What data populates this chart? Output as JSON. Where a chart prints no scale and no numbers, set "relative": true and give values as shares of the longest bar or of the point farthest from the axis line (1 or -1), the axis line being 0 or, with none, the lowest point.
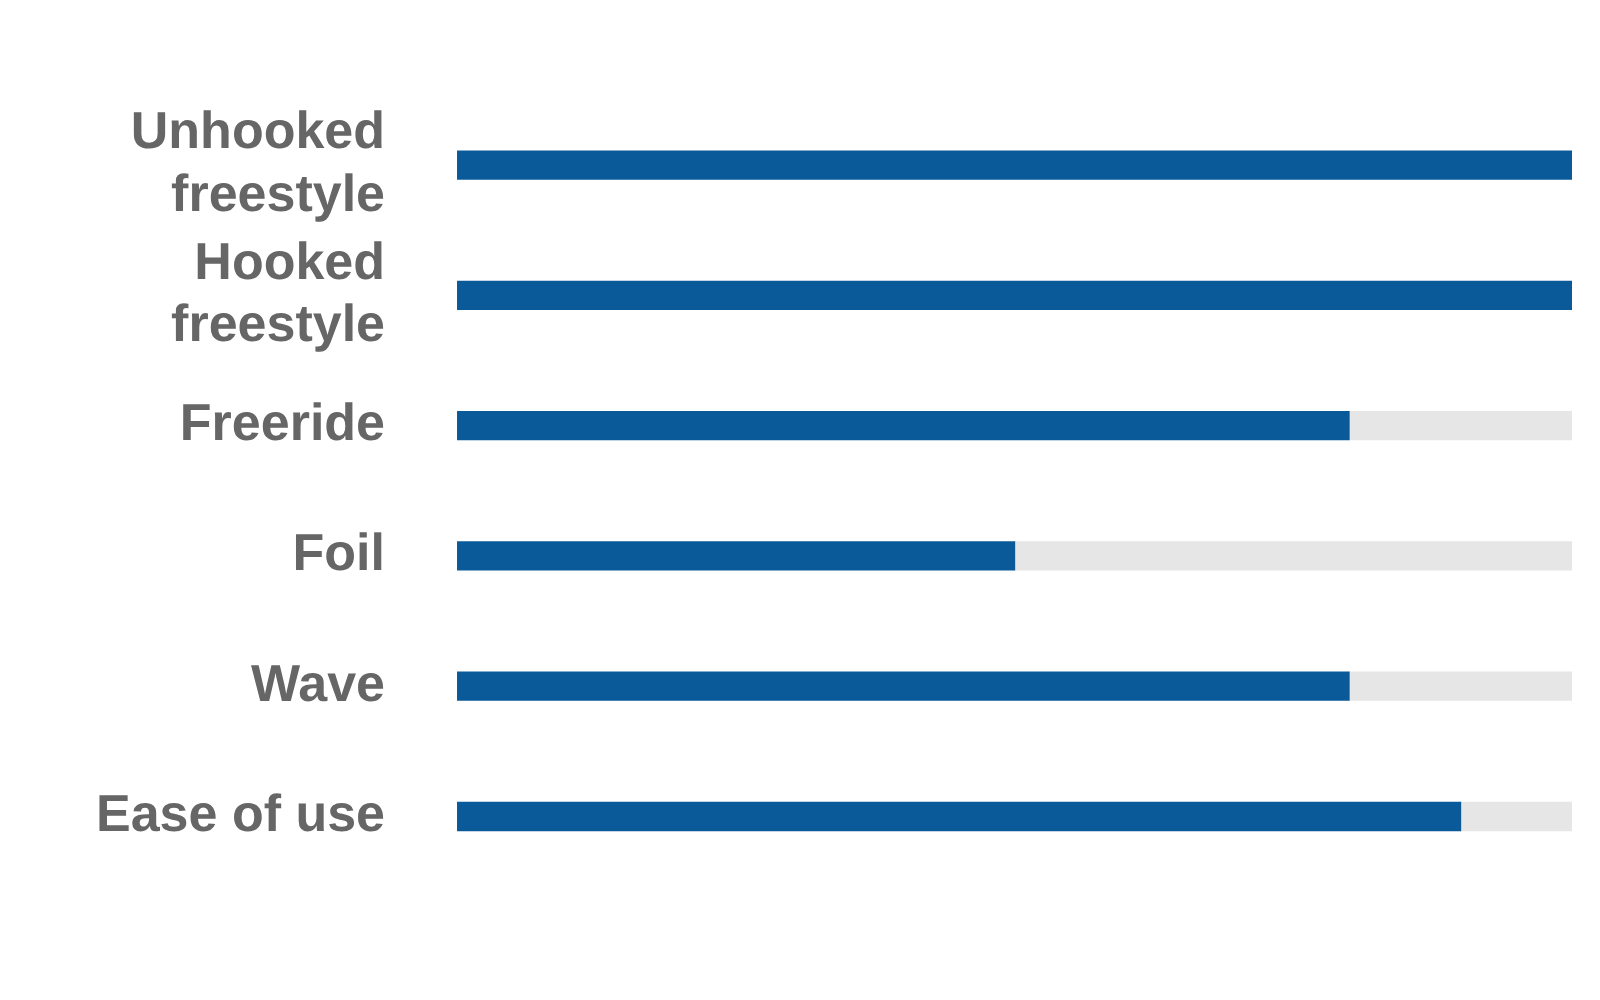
{
  "chart_data": {
    "type": "bar",
    "orientation": "horizontal",
    "relative": true,
    "stacked": true,
    "categories": [
      "Unhooked freestyle",
      "Hooked freestyle",
      "Freeride",
      "Foil",
      "Wave",
      "Ease of use"
    ],
    "series": [
      {
        "color": "#0a5a9a",
        "values": [
          1,
          1,
          0.8,
          0.5,
          0.8,
          0.9
        ]
      },
      {
        "color": "#e6e6e6",
        "values": [
          0,
          0,
          0.2,
          0.5,
          0.2,
          0.1
        ]
      }
    ],
    "legend": false
  }
}
